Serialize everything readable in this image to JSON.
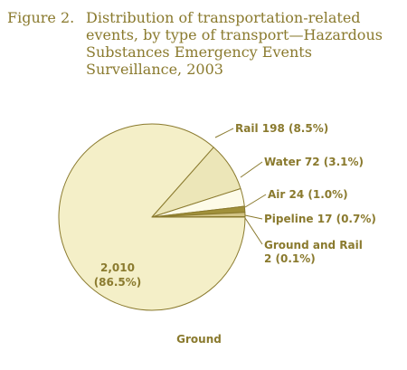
{
  "figure_label": "Figure 2.",
  "title_lines": [
    "Distribution of transportation-related",
    "events, by type of transport—Hazardous",
    "Substances Emergency Events",
    "Surveillance, 2003"
  ],
  "colors": {
    "text": "#8a7a2e",
    "ground": "#f4efc8",
    "rail": "#ece6b8",
    "water": "#fdfbe8",
    "air": "#a0903a",
    "pipeline": "#d2c486",
    "ground_and_rail": "#8a7a2e",
    "outline": "#8a7a2e"
  },
  "chart_data": {
    "type": "pie",
    "title": "Distribution of transportation-related events, by type of transport—Hazardous Substances Emergency Events Surveillance, 2003",
    "slices": [
      {
        "name": "Ground",
        "value": 2010,
        "percent": 86.5,
        "label_lines": [
          "2,010",
          "(86.5%)"
        ],
        "name_label": "Ground"
      },
      {
        "name": "Rail",
        "value": 198,
        "percent": 8.5,
        "label": "Rail 198 (8.5%)"
      },
      {
        "name": "Water",
        "value": 72,
        "percent": 3.1,
        "label": "Water 72 (3.1%)"
      },
      {
        "name": "Air",
        "value": 24,
        "percent": 1.0,
        "label": "Air 24 (1.0%)"
      },
      {
        "name": "Pipeline",
        "value": 17,
        "percent": 0.7,
        "label": "Pipeline 17 (0.7%)"
      },
      {
        "name": "Ground and Rail",
        "value": 2,
        "percent": 0.1,
        "label_lines": [
          "Ground and Rail",
          "2 (0.1%)"
        ]
      }
    ]
  }
}
